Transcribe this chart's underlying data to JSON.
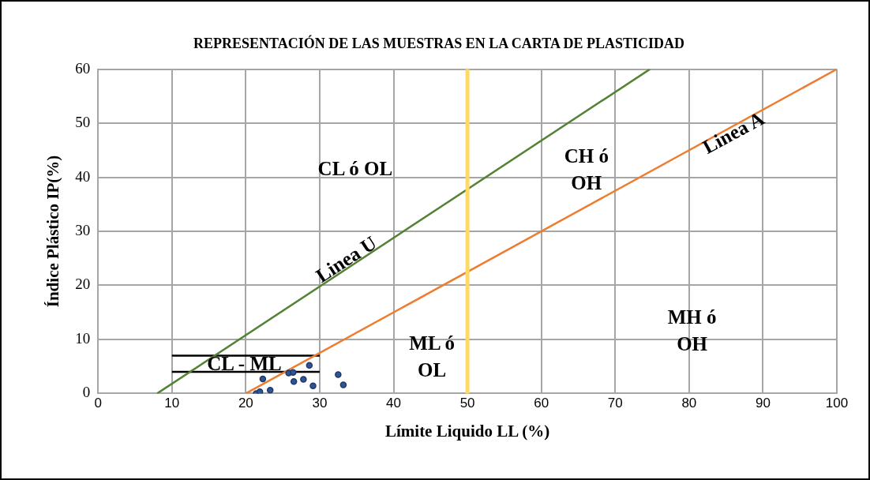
{
  "chart_data": {
    "type": "scatter",
    "title": "REPRESENTACIÓN DE LAS MUESTRAS EN LA CARTA DE PLASTICIDAD",
    "xlabel": "Límite Liquido LL (%)",
    "ylabel": "Índice Plástico IP(%)",
    "xlim": [
      0,
      100
    ],
    "ylim": [
      0,
      60
    ],
    "xticks": [
      0,
      10,
      20,
      30,
      40,
      50,
      60,
      70,
      80,
      90,
      100
    ],
    "yticks": [
      0,
      10,
      20,
      30,
      40,
      50,
      60
    ],
    "grid": true,
    "legend": false,
    "series": [
      {
        "type": "scatter",
        "color": "#2f5597",
        "marker": "circle",
        "x": [
          21.4,
          21.9,
          22.3,
          23.3,
          25.8,
          26.4,
          26.5,
          27.8,
          28.6,
          29.1,
          32.5,
          33.2
        ],
        "values": [
          0,
          0.3,
          2.7,
          0.6,
          3.8,
          3.9,
          2.2,
          2.6,
          5.2,
          1.4,
          3.5,
          1.6
        ]
      },
      {
        "type": "line",
        "color": "#548235",
        "x": [
          8,
          74.7
        ],
        "values": [
          0,
          60
        ]
      },
      {
        "type": "line",
        "color": "#ed7d31",
        "x": [
          20,
          100
        ],
        "values": [
          0,
          60
        ]
      },
      {
        "type": "line",
        "color": "#000000",
        "x": [
          10,
          30
        ],
        "values": [
          4,
          4
        ]
      },
      {
        "type": "line",
        "color": "#000000",
        "x": [
          10,
          30
        ],
        "values": [
          7,
          7
        ]
      }
    ],
    "ref_lines": [
      {
        "axis": "x",
        "value": 50,
        "color": "#ffd966"
      }
    ],
    "annotations": [
      "CL ó OL",
      "CH ó\nOH",
      "Linea U",
      "Linea A",
      "ML ó\nOL",
      "MH ó\nOH",
      "CL - ML"
    ]
  }
}
